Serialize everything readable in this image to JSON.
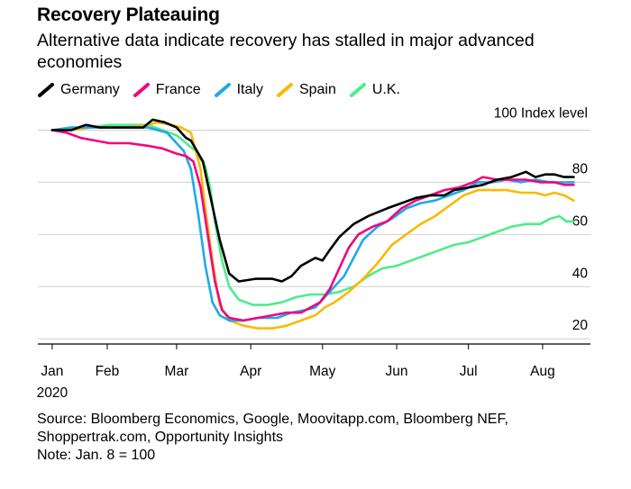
{
  "title": "Recovery Plateauing",
  "subtitle": "Alternative data indicate recovery has stalled in major advanced economies",
  "source_line1": "Source: Bloomberg Economics, Google, Moovitapp.com, Bloomberg NEF,",
  "source_line2": "Shoppertrak.com, Opportunity Insights",
  "note": "Note: Jan. 8 = 100",
  "chart_data": {
    "type": "line",
    "title": "Recovery Plateauing",
    "ylabel": "",
    "unit_label": "100 Index level",
    "year_label": "2020",
    "ylim": [
      18,
      105
    ],
    "xlim": [
      -6,
      225
    ],
    "grid": true,
    "legend": "top-left",
    "x_ticks": [
      {
        "label": "Jan",
        "x": 0
      },
      {
        "label": "Feb",
        "x": 23
      },
      {
        "label": "Mar",
        "x": 52
      },
      {
        "label": "Apr",
        "x": 83
      },
      {
        "label": "May",
        "x": 113
      },
      {
        "label": "Jun",
        "x": 144
      },
      {
        "label": "Jul",
        "x": 174
      },
      {
        "label": "Aug",
        "x": 205
      }
    ],
    "y_ticks": [
      {
        "label": "80",
        "y": 80
      },
      {
        "label": "60",
        "y": 60
      },
      {
        "label": "40",
        "y": 40
      },
      {
        "label": "20",
        "y": 20
      }
    ],
    "series": [
      {
        "name": "Germany",
        "color": "#000000",
        "points": [
          [
            0,
            100
          ],
          [
            8,
            100
          ],
          [
            14,
            102
          ],
          [
            20,
            101
          ],
          [
            30,
            101
          ],
          [
            38,
            101
          ],
          [
            42,
            104
          ],
          [
            47,
            103
          ],
          [
            52,
            101
          ],
          [
            56,
            97
          ],
          [
            58,
            96
          ],
          [
            63,
            88
          ],
          [
            66,
            75
          ],
          [
            70,
            58
          ],
          [
            74,
            45
          ],
          [
            78,
            42
          ],
          [
            85,
            43
          ],
          [
            92,
            43
          ],
          [
            96,
            42
          ],
          [
            100,
            44
          ],
          [
            104,
            48
          ],
          [
            110,
            51
          ],
          [
            113,
            50
          ],
          [
            116,
            54
          ],
          [
            120,
            59
          ],
          [
            126,
            64
          ],
          [
            132,
            67
          ],
          [
            140,
            70
          ],
          [
            146,
            72
          ],
          [
            152,
            74
          ],
          [
            158,
            75
          ],
          [
            164,
            75
          ],
          [
            168,
            77
          ],
          [
            174,
            78
          ],
          [
            180,
            79
          ],
          [
            186,
            81
          ],
          [
            192,
            82
          ],
          [
            198,
            84
          ],
          [
            202,
            82
          ],
          [
            206,
            83
          ],
          [
            210,
            83
          ],
          [
            214,
            82
          ],
          [
            218,
            82
          ]
        ]
      },
      {
        "name": "France",
        "color": "#f0067e",
        "points": [
          [
            0,
            100
          ],
          [
            6,
            99
          ],
          [
            12,
            97
          ],
          [
            18,
            96
          ],
          [
            24,
            95
          ],
          [
            32,
            95
          ],
          [
            40,
            94
          ],
          [
            46,
            93
          ],
          [
            52,
            91
          ],
          [
            56,
            90
          ],
          [
            59,
            88
          ],
          [
            62,
            78
          ],
          [
            65,
            60
          ],
          [
            68,
            42
          ],
          [
            71,
            31
          ],
          [
            74,
            28
          ],
          [
            80,
            27
          ],
          [
            86,
            28
          ],
          [
            92,
            29
          ],
          [
            98,
            30
          ],
          [
            104,
            30
          ],
          [
            108,
            32
          ],
          [
            112,
            34
          ],
          [
            116,
            39
          ],
          [
            120,
            47
          ],
          [
            124,
            55
          ],
          [
            128,
            60
          ],
          [
            134,
            63
          ],
          [
            140,
            65
          ],
          [
            146,
            70
          ],
          [
            152,
            73
          ],
          [
            158,
            75
          ],
          [
            164,
            77
          ],
          [
            170,
            78
          ],
          [
            176,
            80
          ],
          [
            180,
            82
          ],
          [
            186,
            81
          ],
          [
            192,
            81
          ],
          [
            198,
            81
          ],
          [
            204,
            80
          ],
          [
            210,
            80
          ],
          [
            214,
            79
          ],
          [
            218,
            79
          ]
        ]
      },
      {
        "name": "Italy",
        "color": "#1fa9ea",
        "points": [
          [
            0,
            100
          ],
          [
            8,
            101
          ],
          [
            16,
            101
          ],
          [
            24,
            101
          ],
          [
            32,
            101
          ],
          [
            40,
            101
          ],
          [
            44,
            100
          ],
          [
            48,
            99
          ],
          [
            52,
            95
          ],
          [
            55,
            92
          ],
          [
            58,
            85
          ],
          [
            61,
            68
          ],
          [
            64,
            48
          ],
          [
            67,
            34
          ],
          [
            70,
            29
          ],
          [
            74,
            27
          ],
          [
            80,
            27
          ],
          [
            86,
            28
          ],
          [
            94,
            28
          ],
          [
            100,
            30
          ],
          [
            106,
            31
          ],
          [
            110,
            32
          ],
          [
            114,
            36
          ],
          [
            118,
            40
          ],
          [
            122,
            44
          ],
          [
            126,
            51
          ],
          [
            130,
            58
          ],
          [
            136,
            63
          ],
          [
            142,
            66
          ],
          [
            148,
            70
          ],
          [
            154,
            72
          ],
          [
            160,
            73
          ],
          [
            166,
            75
          ],
          [
            172,
            77
          ],
          [
            178,
            80
          ],
          [
            184,
            80
          ],
          [
            190,
            81
          ],
          [
            196,
            80
          ],
          [
            202,
            81
          ],
          [
            208,
            80
          ],
          [
            212,
            80
          ],
          [
            218,
            80
          ]
        ]
      },
      {
        "name": "Spain",
        "color": "#fbb900",
        "points": [
          [
            0,
            100
          ],
          [
            8,
            100
          ],
          [
            16,
            101
          ],
          [
            24,
            101
          ],
          [
            32,
            101
          ],
          [
            40,
            102
          ],
          [
            44,
            103
          ],
          [
            50,
            102
          ],
          [
            54,
            101
          ],
          [
            58,
            99
          ],
          [
            62,
            85
          ],
          [
            64,
            70
          ],
          [
            67,
            50
          ],
          [
            70,
            33
          ],
          [
            74,
            27
          ],
          [
            80,
            25
          ],
          [
            86,
            24
          ],
          [
            92,
            24
          ],
          [
            98,
            25
          ],
          [
            104,
            27
          ],
          [
            110,
            29
          ],
          [
            114,
            32
          ],
          [
            118,
            34
          ],
          [
            124,
            38
          ],
          [
            130,
            43
          ],
          [
            136,
            49
          ],
          [
            142,
            56
          ],
          [
            148,
            60
          ],
          [
            154,
            64
          ],
          [
            160,
            67
          ],
          [
            166,
            71
          ],
          [
            172,
            75
          ],
          [
            178,
            77
          ],
          [
            184,
            77
          ],
          [
            190,
            77
          ],
          [
            196,
            76
          ],
          [
            202,
            76
          ],
          [
            206,
            75
          ],
          [
            210,
            76
          ],
          [
            214,
            75
          ],
          [
            218,
            73
          ]
        ]
      },
      {
        "name": "U.K.",
        "color": "#4ded8a",
        "points": [
          [
            0,
            100
          ],
          [
            8,
            101
          ],
          [
            16,
            101
          ],
          [
            24,
            102
          ],
          [
            32,
            102
          ],
          [
            40,
            102
          ],
          [
            46,
            100
          ],
          [
            52,
            98
          ],
          [
            56,
            95
          ],
          [
            60,
            92
          ],
          [
            64,
            86
          ],
          [
            66,
            78
          ],
          [
            68,
            65
          ],
          [
            71,
            50
          ],
          [
            74,
            40
          ],
          [
            78,
            35
          ],
          [
            84,
            33
          ],
          [
            90,
            33
          ],
          [
            96,
            34
          ],
          [
            102,
            36
          ],
          [
            108,
            37
          ],
          [
            114,
            37
          ],
          [
            120,
            38
          ],
          [
            126,
            40
          ],
          [
            132,
            44
          ],
          [
            138,
            47
          ],
          [
            144,
            48
          ],
          [
            150,
            50
          ],
          [
            156,
            52
          ],
          [
            162,
            54
          ],
          [
            168,
            56
          ],
          [
            174,
            57
          ],
          [
            180,
            59
          ],
          [
            186,
            61
          ],
          [
            192,
            63
          ],
          [
            198,
            64
          ],
          [
            204,
            64
          ],
          [
            208,
            66
          ],
          [
            212,
            67
          ],
          [
            215,
            65
          ],
          [
            218,
            65
          ]
        ]
      }
    ]
  }
}
